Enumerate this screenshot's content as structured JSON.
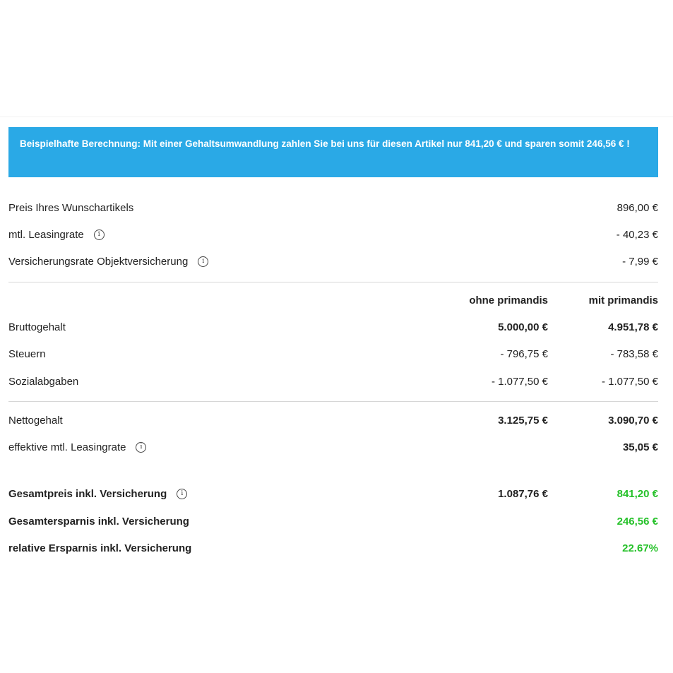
{
  "banner": {
    "text": "Beispielhafte Berechnung: Mit einer Gehaltsumwandlung zahlen Sie bei uns für diesen Artikel nur 841,20 € und sparen somit 246,56 € !"
  },
  "info_glyph": "i",
  "costs": [
    {
      "label": "Preis Ihres Wunschartikels",
      "value": "896,00 €"
    },
    {
      "label": "mtl. Leasingrate",
      "value": "- 40,23 €"
    },
    {
      "label": "Versicherungsrate Objektversicherung",
      "value": "- 7,99 €"
    }
  ],
  "columns": {
    "without": "ohne primandis",
    "with": "mit primandis"
  },
  "salary": [
    {
      "label": "Bruttogehalt",
      "without": "5.000,00 €",
      "with": "4.951,78 €"
    },
    {
      "label": "Steuern",
      "without": "- 796,75 €",
      "with": "- 783,58 €"
    },
    {
      "label": "Sozialabgaben",
      "without": "- 1.077,50 €",
      "with": "- 1.077,50 €"
    }
  ],
  "net": {
    "label": "Nettogehalt",
    "without": "3.125,75 €",
    "with": "3.090,70 €"
  },
  "effective_rate": {
    "label": "effektive mtl. Leasingrate",
    "with": "35,05 €"
  },
  "summary": {
    "total_price": {
      "label": "Gesamtpreis inkl. Versicherung",
      "without": "1.087,76 €",
      "with": "841,20 €"
    },
    "total_savings": {
      "label": "Gesamtersparnis inkl. Versicherung",
      "with": "246,56 €"
    },
    "relative_savings": {
      "label": "relative Ersparnis inkl. Versicherung",
      "with": "22.67%"
    }
  },
  "colors": {
    "banner": "#2aa9e6",
    "savings": "#25c129"
  },
  "icons": {
    "info": "info-circle-icon"
  }
}
